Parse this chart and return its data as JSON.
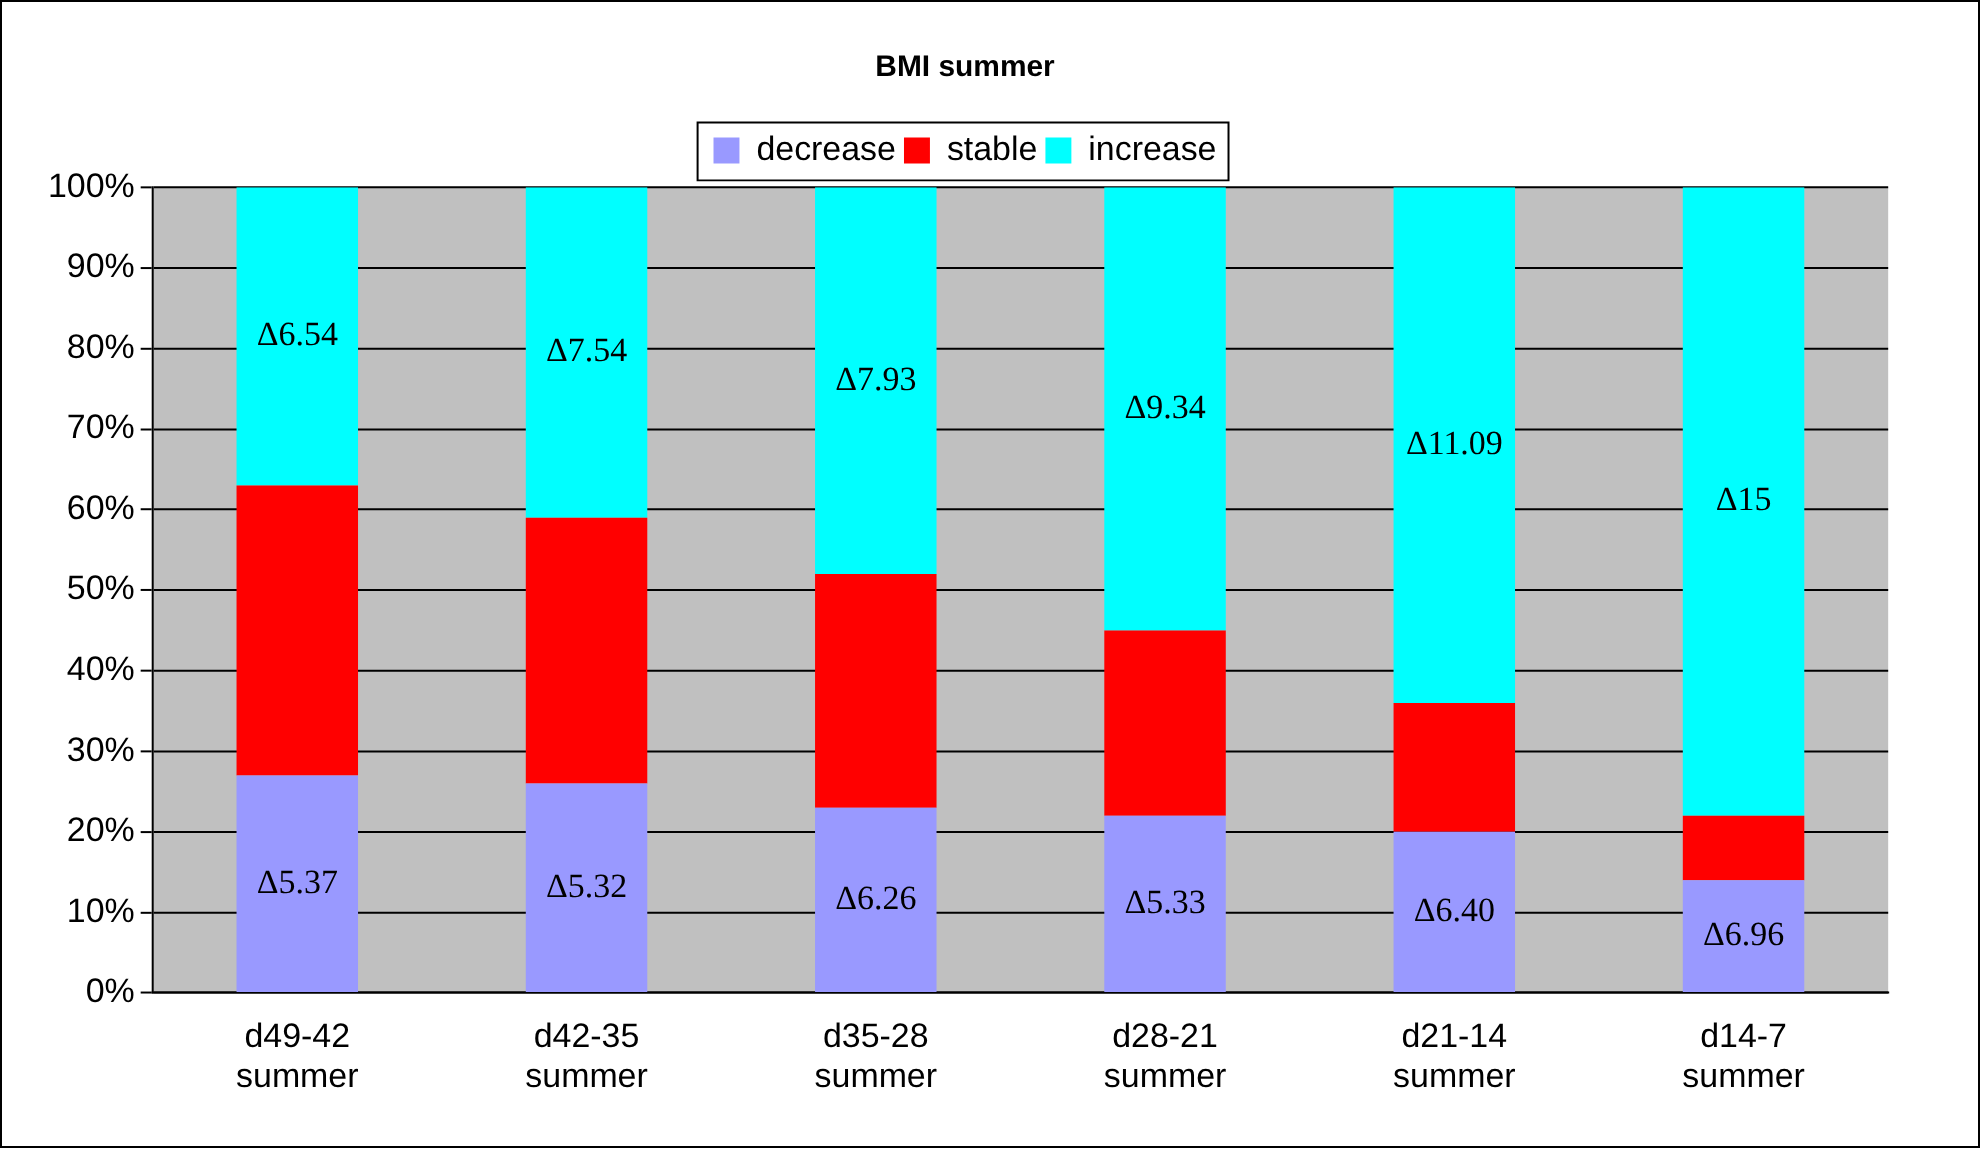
{
  "chart_data": {
    "type": "bar",
    "title": "BMI summer",
    "stacked": true,
    "categories": [
      "d49-42 summer",
      "d42-35 summer",
      "d35-28 summer",
      "d28-21 summer",
      "d21-14 summer",
      "d14-7 summer"
    ],
    "series": [
      {
        "name": "decrease",
        "color": "#9999ff",
        "values": [
          27,
          26,
          23,
          22,
          20,
          14
        ],
        "value_labels": [
          "Δ5.37",
          "Δ5.32",
          "Δ6.26",
          "Δ5.33",
          "Δ6.40",
          "Δ6.96"
        ]
      },
      {
        "name": "stable",
        "color": "#ff0000",
        "values": [
          36,
          33,
          29,
          23,
          16,
          8
        ]
      },
      {
        "name": "increase",
        "color": "#00ffff",
        "values": [
          37,
          41,
          48,
          55,
          64,
          78
        ],
        "value_labels": [
          "Δ6.54",
          "Δ7.54",
          "Δ7.93",
          "Δ9.34",
          "Δ11.09",
          "Δ15"
        ]
      }
    ],
    "ylim": [
      0,
      100
    ],
    "yticks": [
      {
        "value": 0,
        "label": "0%"
      },
      {
        "value": 10,
        "label": "10%"
      },
      {
        "value": 20,
        "label": "20%"
      },
      {
        "value": 30,
        "label": "30%"
      },
      {
        "value": 40,
        "label": "40%"
      },
      {
        "value": 50,
        "label": "50%"
      },
      {
        "value": 60,
        "label": "60%"
      },
      {
        "value": 70,
        "label": "70%"
      },
      {
        "value": 80,
        "label": "80%"
      },
      {
        "value": 90,
        "label": "90%"
      },
      {
        "value": 100,
        "label": "100%"
      }
    ],
    "grid": "y",
    "legend": "top"
  }
}
